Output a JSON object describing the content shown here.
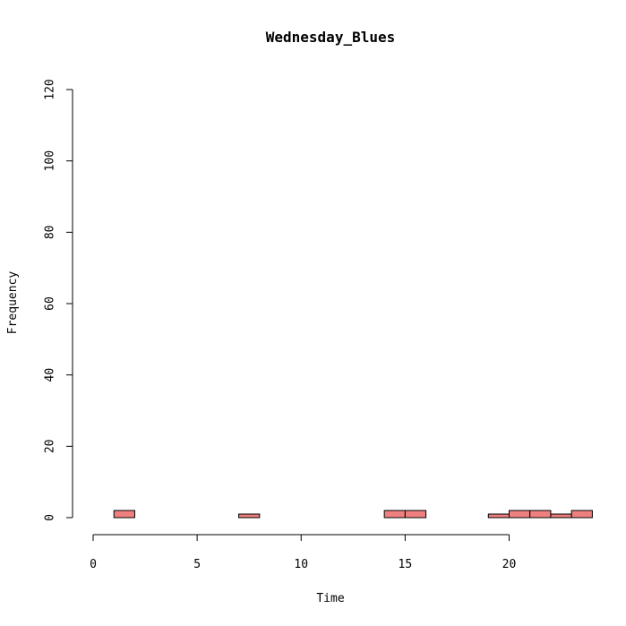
{
  "chart_data": {
    "type": "bar",
    "title": "Wednesday_Blues",
    "xlabel": "Time",
    "ylabel": "Frequency",
    "xlim": [
      0,
      24
    ],
    "ylim": [
      0,
      120
    ],
    "bar_color": "#f08080",
    "x_ticks": [
      0,
      5,
      10,
      15,
      20
    ],
    "y_ticks": [
      0,
      20,
      40,
      60,
      80,
      100,
      120
    ],
    "bin_width": 1,
    "bins": [
      {
        "x": 0,
        "count": 0
      },
      {
        "x": 1,
        "count": 2
      },
      {
        "x": 2,
        "count": 0
      },
      {
        "x": 3,
        "count": 0
      },
      {
        "x": 4,
        "count": 0
      },
      {
        "x": 5,
        "count": 0
      },
      {
        "x": 6,
        "count": 0
      },
      {
        "x": 7,
        "count": 1
      },
      {
        "x": 8,
        "count": 0
      },
      {
        "x": 9,
        "count": 0
      },
      {
        "x": 10,
        "count": 0
      },
      {
        "x": 11,
        "count": 0
      },
      {
        "x": 12,
        "count": 0
      },
      {
        "x": 13,
        "count": 0
      },
      {
        "x": 14,
        "count": 2
      },
      {
        "x": 15,
        "count": 2
      },
      {
        "x": 16,
        "count": 0
      },
      {
        "x": 17,
        "count": 0
      },
      {
        "x": 18,
        "count": 0
      },
      {
        "x": 19,
        "count": 1
      },
      {
        "x": 20,
        "count": 2
      },
      {
        "x": 21,
        "count": 2
      },
      {
        "x": 22,
        "count": 1
      },
      {
        "x": 23,
        "count": 2
      }
    ]
  }
}
